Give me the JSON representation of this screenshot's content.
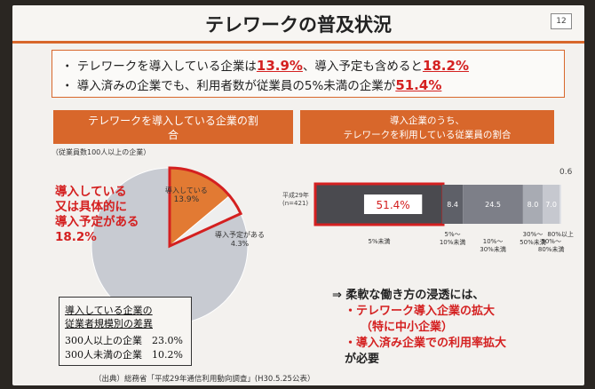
{
  "title": "テレワークの普及状況",
  "page_number": "12",
  "summary": {
    "line1_prefix": "・ テレワークを導入している企業は",
    "line1_v1": "13.9%",
    "line1_mid": "、導入予定も含めると",
    "line1_v2": "18.2%",
    "line2_prefix": "・ 導入済みの企業でも、利用者数が従業員の5%未満の企業が",
    "line2_v": "51.4%"
  },
  "left_header": {
    "line1": "テレワークを導入している企業の割",
    "line2": "合"
  },
  "right_header": {
    "line1": "導入企業のうち、",
    "line2": "テレワークを利用している従業員の割合"
  },
  "pie_note": "（従業員数100人以上の企業）",
  "pie_red_label": {
    "l1": "導入している",
    "l2": "又は具体的に",
    "l3": "導入予定がある",
    "l4": "18.2%"
  },
  "pie_inner": {
    "adopted_label": "導入している",
    "adopted_value": "13.9%",
    "planned_label": "導入予定がある",
    "planned_value": "4.3%"
  },
  "bar_row_label": {
    "l1": "平成29年",
    "l2": "(n=421)"
  },
  "bar_extra_label": "0.6",
  "size_box": {
    "title1": "導入している企業の",
    "title2": "従業者規模別の差異",
    "row1": "300人以上の企業　23.0%",
    "row2": "300人未満の企業　10.2%"
  },
  "conclusion": {
    "l1": "⇒ 柔軟な働き方の浸透には、",
    "l2": "・テレワーク導入企業の拡大",
    "l3": "（特に中小企業）",
    "l4": "・導入済み企業での利用率拡大",
    "l5": "が必要"
  },
  "source": "（出典）総務省「平成29年通信利用動向調査」(H30.5.25公表）",
  "colors": {
    "accent": "#d8672b",
    "red": "#d42020",
    "pie_orange": "#e27a33",
    "pie_gray": "#c8cbd2"
  },
  "chart_data": [
    {
      "type": "pie",
      "slices": [
        {
          "name": "導入している",
          "value": 13.9
        },
        {
          "name": "導入予定がある",
          "value": 4.3
        },
        {
          "name": "",
          "value": 81.8
        }
      ]
    },
    {
      "type": "bar",
      "orientation": "horizontal-stacked",
      "categories": [
        "平成29年 (n=421)"
      ],
      "series": [
        {
          "name": "5%未満",
          "values": [
            51.4
          ],
          "label": "51.4%",
          "color": "#4a4a4f"
        },
        {
          "name": "5%〜10%未満",
          "values": [
            8.4
          ],
          "label": "8.4",
          "color": "#5e6068"
        },
        {
          "name": "10%〜30%未満",
          "values": [
            24.5
          ],
          "label": "24.5",
          "color": "#7d7f88"
        },
        {
          "name": "30%〜50%未満",
          "values": [
            8.0
          ],
          "label": "8.0",
          "color": "#a8abb3"
        },
        {
          "name": "50%〜80%未満",
          "values": [
            7.0
          ],
          "label": "7.0",
          "color": "#c6c8cf"
        },
        {
          "name": "80%以上",
          "values": [
            0.6
          ],
          "label": "",
          "color": "#e0e2e7"
        }
      ]
    }
  ]
}
